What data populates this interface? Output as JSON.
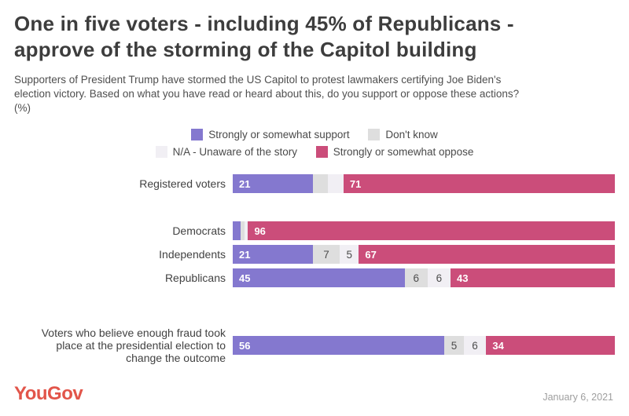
{
  "header": {
    "title_lines": [
      "One in five voters - including 45% of Republicans -",
      "approve of the storming of the Capitol building"
    ],
    "subtitle_lines": [
      "Supporters of President Trump have stormed the US Capitol to protest lawmakers certifying Joe Biden's",
      "election victory. Based on what you have read or heard about this, do you support or oppose these actions?",
      "(%)"
    ]
  },
  "legend": {
    "rows": [
      [
        {
          "key": "support",
          "label": "Strongly or somewhat support"
        },
        {
          "key": "dont_know",
          "label": "Don't know"
        }
      ],
      [
        {
          "key": "unaware",
          "label": "N/A - Unaware of the story"
        },
        {
          "key": "oppose",
          "label": "Strongly or somewhat oppose"
        }
      ]
    ]
  },
  "chart_data": {
    "type": "bar",
    "orientation": "horizontal",
    "stacked": true,
    "unit": "%",
    "xlim": [
      0,
      100
    ],
    "grid": false,
    "legend_position": "top-center",
    "series_labels": {
      "support": "Strongly or somewhat support",
      "dont_know": "Don't know",
      "unaware": "N/A - Unaware of the story",
      "oppose": "Strongly or somewhat oppose"
    },
    "colors": {
      "support": "#8478cf",
      "dont_know": "#dedede",
      "unaware": "#f1eff4",
      "oppose": "#cb4d7a"
    },
    "label_colors": {
      "on_dark": "#ffffff",
      "on_light": "#4d4d4d"
    },
    "rows": [
      {
        "label_lines": [
          "Registered voters"
        ],
        "gap_before": 0,
        "segments": [
          {
            "key": "support",
            "value": 21,
            "show_label": true
          },
          {
            "key": "dont_know",
            "value": 4,
            "show_label": false
          },
          {
            "key": "unaware",
            "value": 4,
            "show_label": false
          },
          {
            "key": "oppose",
            "value": 71,
            "show_label": true
          }
        ]
      },
      {
        "label_lines": [
          "Democrats"
        ],
        "gap_before": 36,
        "segments": [
          {
            "key": "support",
            "value": 2,
            "show_label": false
          },
          {
            "key": "dont_know",
            "value": 1,
            "show_label": false
          },
          {
            "key": "unaware",
            "value": 1,
            "show_label": false
          },
          {
            "key": "oppose",
            "value": 96,
            "show_label": true
          }
        ]
      },
      {
        "label_lines": [
          "Independents"
        ],
        "gap_before": 6,
        "segments": [
          {
            "key": "support",
            "value": 21,
            "show_label": true
          },
          {
            "key": "dont_know",
            "value": 7,
            "show_label": true
          },
          {
            "key": "unaware",
            "value": 5,
            "show_label": true
          },
          {
            "key": "oppose",
            "value": 67,
            "show_label": true
          }
        ]
      },
      {
        "label_lines": [
          "Republicans"
        ],
        "gap_before": 6,
        "segments": [
          {
            "key": "support",
            "value": 45,
            "show_label": true
          },
          {
            "key": "dont_know",
            "value": 6,
            "show_label": true
          },
          {
            "key": "unaware",
            "value": 6,
            "show_label": true
          },
          {
            "key": "oppose",
            "value": 43,
            "show_label": true
          }
        ]
      },
      {
        "label_lines": [
          "Voters who believe enough fraud took",
          "place at the presidential election to",
          "change the outcome"
        ],
        "gap_before": 50,
        "segments": [
          {
            "key": "support",
            "value": 56,
            "show_label": true
          },
          {
            "key": "dont_know",
            "value": 5,
            "show_label": true
          },
          {
            "key": "unaware",
            "value": 6,
            "show_label": true
          },
          {
            "key": "oppose",
            "value": 34,
            "show_label": true
          }
        ]
      }
    ]
  },
  "footer": {
    "brand": "YouGov",
    "date": "January 6, 2021"
  }
}
